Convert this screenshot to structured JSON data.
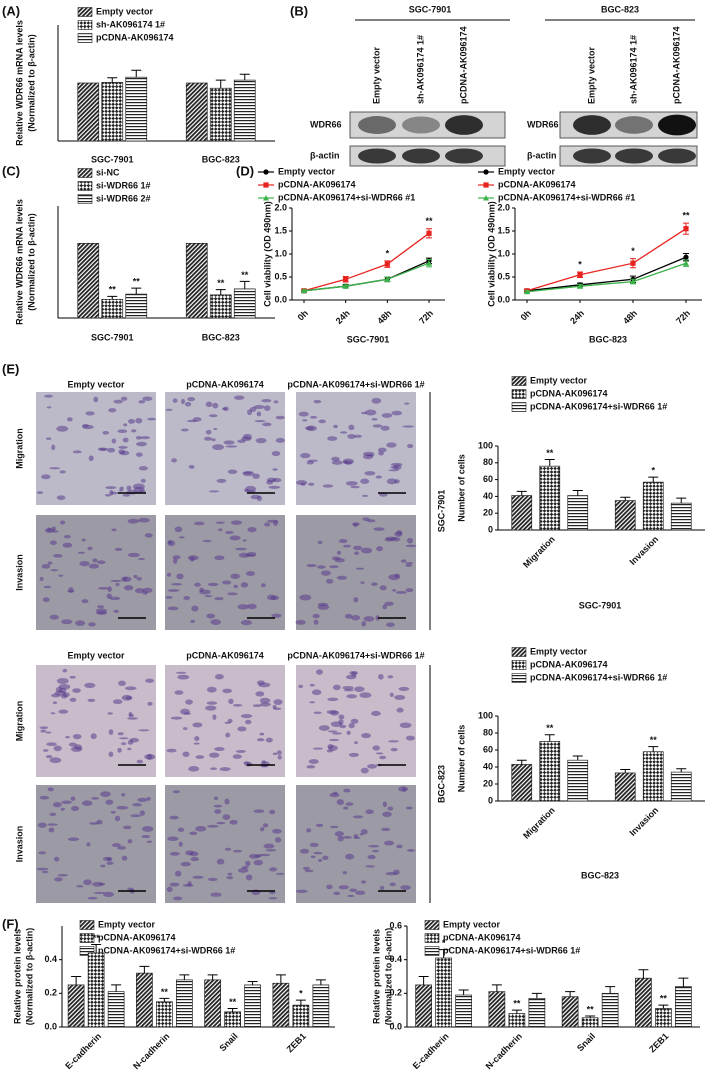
{
  "panel_labels": [
    "(A)",
    "(B)",
    "(C)",
    "(D)",
    "(E)",
    "(F)"
  ],
  "blots": [
    {
      "cell_line": "SGC-7901",
      "lanes": [
        "Empty vector",
        "sh-AK096174 1#",
        "pCDNA-AK096174"
      ],
      "proteins": [
        "WDR66",
        "β-actin"
      ]
    },
    {
      "cell_line": "BGC-823",
      "lanes": [
        "Empty vector",
        "sh-AK096174 1#",
        "pCDNA-AK096174"
      ],
      "proteins": [
        "WDR66",
        "β-actin"
      ]
    }
  ],
  "micrographs": [
    {
      "cell_line": "SGC-7901",
      "columns": [
        "Empty vector",
        "pCDNA-AK096174",
        "pCDNA-AK096174+si-WDR66 1#"
      ],
      "rows": [
        "Migration",
        "Invasion"
      ]
    },
    {
      "cell_line": "BGC-823",
      "columns": [
        "Empty vector",
        "pCDNA-AK096174",
        "pCDNA-AK096174+si-WDR66 1#"
      ],
      "rows": [
        "Migration",
        "Invasion"
      ]
    }
  ],
  "chart_data": [
    {
      "type": "bar",
      "ylabel": [
        "Relative WDR66 mRNA levels",
        "(Normalized to β-actin)"
      ],
      "categories": [
        "SGC-7901",
        "BGC-823"
      ],
      "ylim": [
        0,
        2
      ],
      "series": [
        {
          "name": "Empty vector",
          "values": [
            1,
            1
          ],
          "errors": [
            null,
            null
          ]
        },
        {
          "name": "sh-AK096174 1#",
          "values": [
            1.01,
            0.91
          ],
          "errors": [
            0.08,
            0.14
          ]
        },
        {
          "name": "pCDNA-AK096174",
          "values": [
            1.1,
            1.05
          ],
          "errors": [
            0.12,
            0.1
          ]
        }
      ]
    },
    {
      "type": "bar",
      "ylabel": [
        "Relative WDR66 mRNA levels",
        "(Normalized to β-actin)"
      ],
      "categories": [
        "SGC-7901",
        "BGC-823"
      ],
      "ylim": [
        0,
        1.5
      ],
      "series": [
        {
          "name": "si-NC",
          "values": [
            1,
            1
          ],
          "errors": [
            null,
            null
          ]
        },
        {
          "name": "si-WDR66 1#",
          "values": [
            0.25,
            0.31
          ],
          "errors": [
            0.04,
            0.07
          ],
          "significance": [
            "**",
            "**"
          ]
        },
        {
          "name": "si-WDR66 2#",
          "values": [
            0.32,
            0.39
          ],
          "errors": [
            0.08,
            0.1
          ],
          "significance": [
            "**",
            "**"
          ]
        }
      ]
    },
    {
      "type": "line",
      "ylabel": [
        "Cell viability (OD 490nm)"
      ],
      "xlabel": "SGC-7901",
      "categories": [
        "0h",
        "24h",
        "48h",
        "72h"
      ],
      "ylim": [
        0,
        2
      ],
      "yticks": [
        {
          "value": 0,
          "label": "0.0"
        },
        {
          "value": 0.5,
          "label": "0.5"
        },
        {
          "value": 1,
          "label": "1.0"
        },
        {
          "value": 1.5,
          "label": "1.5"
        },
        {
          "value": 2,
          "label": "2.0"
        }
      ],
      "series": [
        {
          "name": "Empty vector",
          "color": "#000000",
          "values": [
            0.2,
            0.3,
            0.45,
            0.85
          ],
          "errors": [
            0.02,
            0.04,
            0.05,
            0.06
          ]
        },
        {
          "name": "pCDNA-AK096174",
          "color": "#e8231f",
          "values": [
            0.2,
            0.45,
            0.78,
            1.45
          ],
          "errors": [
            0.03,
            0.06,
            0.07,
            0.1
          ],
          "significance": [
            null,
            null,
            "*",
            "**"
          ]
        },
        {
          "name": "pCDNA-AK096174+si-WDR66 #1",
          "color": "#3cb34a",
          "values": [
            0.2,
            0.3,
            0.45,
            0.8
          ],
          "errors": [
            0.02,
            0.03,
            0.05,
            0.08
          ]
        }
      ]
    },
    {
      "type": "line",
      "ylabel": [
        "Cell viability (OD 490nm)"
      ],
      "xlabel": "BGC-823",
      "categories": [
        "0h",
        "24h",
        "48h",
        "72h"
      ],
      "ylim": [
        0,
        2
      ],
      "yticks": [
        {
          "value": 0,
          "label": "0.0"
        },
        {
          "value": 0.5,
          "label": "0.5"
        },
        {
          "value": 1,
          "label": "1.0"
        },
        {
          "value": 1.5,
          "label": "1.5"
        },
        {
          "value": 2,
          "label": "2.0"
        }
      ],
      "series": [
        {
          "name": "Empty vector",
          "color": "#000000",
          "values": [
            0.2,
            0.33,
            0.45,
            0.93
          ],
          "errors": [
            0.02,
            0.04,
            0.07,
            0.08
          ]
        },
        {
          "name": "pCDNA-AK096174",
          "color": "#e8231f",
          "values": [
            0.2,
            0.55,
            0.8,
            1.55
          ],
          "errors": [
            0.03,
            0.06,
            0.1,
            0.12
          ],
          "significance": [
            null,
            "*",
            "*",
            "**"
          ]
        },
        {
          "name": "pCDNA-AK096174+si-WDR66 #1",
          "color": "#3cb34a",
          "values": [
            0.18,
            0.3,
            0.4,
            0.8
          ],
          "errors": [
            0.02,
            0.04,
            0.05,
            0.07
          ]
        }
      ]
    },
    {
      "type": "bar",
      "ylabel": [
        "Number of cells"
      ],
      "xlabel": "SGC-7901",
      "categories": [
        "Migration",
        "Invasion"
      ],
      "ylim": [
        0,
        100
      ],
      "yticks": [
        0,
        20,
        40,
        60,
        80,
        100
      ],
      "series": [
        {
          "name": "Empty vector",
          "values": [
            41,
            35
          ],
          "errors": [
            5,
            4
          ]
        },
        {
          "name": "pCDNA-AK096174",
          "values": [
            76,
            57
          ],
          "errors": [
            8,
            6
          ],
          "significance": [
            "**",
            "*"
          ]
        },
        {
          "name": "pCDNA-AK096174+si-WDR66 1#",
          "values": [
            41,
            32
          ],
          "errors": [
            6,
            6
          ]
        }
      ]
    },
    {
      "type": "bar",
      "ylabel": [
        "Number of cells"
      ],
      "xlabel": "BGC-823",
      "categories": [
        "Migration",
        "Invasion"
      ],
      "ylim": [
        0,
        100
      ],
      "yticks": [
        0,
        20,
        40,
        60,
        80,
        100
      ],
      "series": [
        {
          "name": "Empty vector",
          "values": [
            43,
            33
          ],
          "errors": [
            5,
            4
          ]
        },
        {
          "name": "pCDNA-AK096174",
          "values": [
            70,
            58
          ],
          "errors": [
            8,
            6
          ],
          "significance": [
            "**",
            "**"
          ]
        },
        {
          "name": "pCDNA-AK096174+si-WDR66 1#",
          "values": [
            48,
            34
          ],
          "errors": [
            5,
            4
          ]
        }
      ]
    },
    {
      "type": "bar",
      "ylabel": [
        "Relative protein levels",
        "(Normalized to β-actin)"
      ],
      "categories": [
        "E-cadherin",
        "N-cadherin",
        "Snail",
        "ZEB1"
      ],
      "ylim": [
        0,
        0.6
      ],
      "yticks": [
        {
          "value": 0,
          "label": "0.0"
        },
        {
          "value": 0.2,
          "label": "0.2"
        },
        {
          "value": 0.4,
          "label": "0.4"
        }
      ],
      "series": [
        {
          "name": "Empty vector",
          "values": [
            0.25,
            0.32,
            0.28,
            0.26
          ],
          "errors": [
            0.05,
            0.04,
            0.03,
            0.05
          ]
        },
        {
          "name": "pCDNA-AK096174",
          "values": [
            0.44,
            0.15,
            0.09,
            0.13
          ],
          "errors": [
            0.05,
            0.02,
            0.02,
            0.03
          ],
          "significance": [
            "**",
            "**",
            "**",
            "*"
          ]
        },
        {
          "name": "pCDNA-AK096174+si-WDR66 1#",
          "values": [
            0.21,
            0.28,
            0.25,
            0.25
          ],
          "errors": [
            0.04,
            0.03,
            0.02,
            0.03
          ]
        }
      ]
    },
    {
      "type": "bar",
      "ylabel": [
        "Relative protein levels",
        "(Normalized to β-actin)"
      ],
      "categories": [
        "E-cadherin",
        "N-cadherin",
        "Snail",
        "ZEB1"
      ],
      "ylim": [
        0,
        0.6
      ],
      "yticks": [
        {
          "value": 0,
          "label": "0.0"
        },
        {
          "value": 0.2,
          "label": "0.2"
        },
        {
          "value": 0.4,
          "label": "0.4"
        },
        {
          "value": 0.6,
          "label": "0.6"
        }
      ],
      "series": [
        {
          "name": "Empty vector",
          "values": [
            0.25,
            0.21,
            0.18,
            0.29
          ],
          "errors": [
            0.05,
            0.04,
            0.03,
            0.05
          ]
        },
        {
          "name": "pCDNA-AK096174",
          "values": [
            0.41,
            0.08,
            0.055,
            0.11
          ],
          "errors": [
            0.05,
            0.02,
            0.01,
            0.02
          ],
          "significance": [
            "*",
            "**",
            "**",
            "**"
          ]
        },
        {
          "name": "pCDNA-AK096174+si-WDR66 1#",
          "values": [
            0.19,
            0.17,
            0.2,
            0.24
          ],
          "errors": [
            0.03,
            0.03,
            0.04,
            0.05
          ]
        }
      ]
    }
  ]
}
